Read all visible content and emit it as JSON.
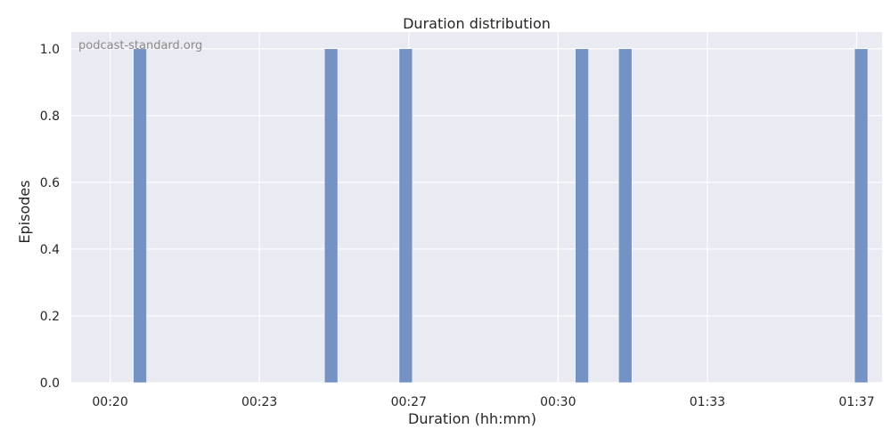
{
  "chart_data": {
    "type": "bar",
    "title": "Duration distribution",
    "xlabel": "Duration (hh:mm)",
    "ylabel": "Episodes",
    "watermark": "podcast-standard.org",
    "x_tick_labels": [
      "00:20",
      "00:23",
      "00:27",
      "00:30",
      "01:33",
      "01:37"
    ],
    "y_ticks": [
      0.0,
      0.2,
      0.4,
      0.6,
      0.8,
      1.0
    ],
    "y_tick_labels": [
      "0.0",
      "0.2",
      "0.4",
      "0.6",
      "0.8",
      "1.0"
    ],
    "ylim": [
      0,
      1.05
    ],
    "bars": [
      {
        "x": 0.2,
        "value": 1
      },
      {
        "x": 1.48,
        "value": 1
      },
      {
        "x": 1.98,
        "value": 1
      },
      {
        "x": 3.16,
        "value": 1
      },
      {
        "x": 3.45,
        "value": 1
      },
      {
        "x": 5.03,
        "value": 1
      }
    ],
    "x_tick_positions": [
      0,
      1,
      2,
      3,
      4,
      5
    ],
    "xlim": [
      -0.26,
      5.17
    ],
    "grid": true,
    "colors": {
      "bar": "#6f8dc2",
      "plot_background": "#eaeaf2",
      "grid": "#ffffff"
    }
  }
}
